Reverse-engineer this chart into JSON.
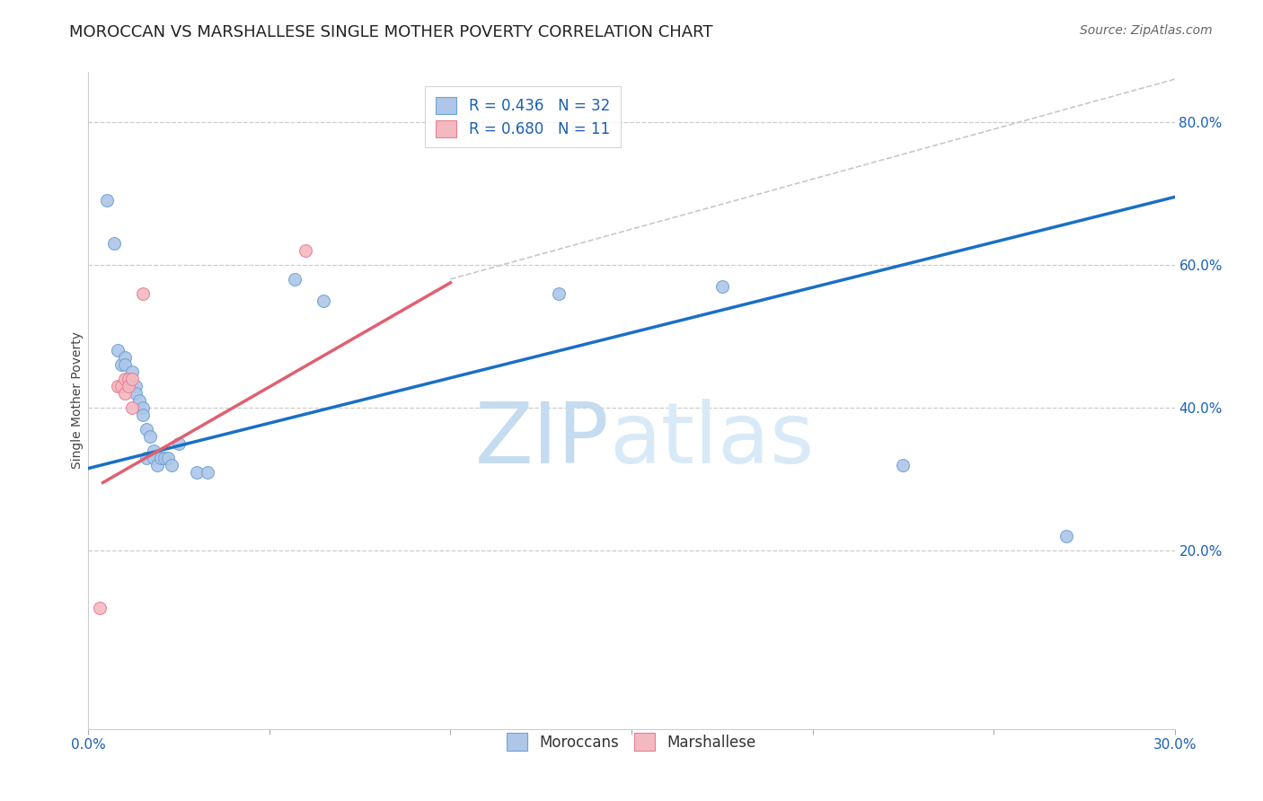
{
  "title": "MOROCCAN VS MARSHALLESE SINGLE MOTHER POVERTY CORRELATION CHART",
  "source": "Source: ZipAtlas.com",
  "ylabel": "Single Mother Poverty",
  "xlim": [
    0.0,
    0.3
  ],
  "ylim": [
    -0.05,
    0.87
  ],
  "xticks": [
    0.0,
    0.05,
    0.1,
    0.15,
    0.2,
    0.25,
    0.3
  ],
  "xticklabels": [
    "0.0%",
    "",
    "",
    "",
    "",
    "",
    "30.0%"
  ],
  "yticks_right": [
    0.2,
    0.4,
    0.6,
    0.8
  ],
  "yticklabels_right": [
    "20.0%",
    "40.0%",
    "60.0%",
    "80.0%"
  ],
  "moroccan_x": [
    0.005,
    0.007,
    0.008,
    0.009,
    0.01,
    0.01,
    0.011,
    0.012,
    0.013,
    0.013,
    0.014,
    0.015,
    0.015,
    0.016,
    0.016,
    0.017,
    0.018,
    0.018,
    0.019,
    0.02,
    0.021,
    0.022,
    0.023,
    0.025,
    0.03,
    0.033,
    0.057,
    0.065,
    0.13,
    0.175,
    0.225,
    0.27
  ],
  "moroccan_y": [
    0.69,
    0.63,
    0.48,
    0.46,
    0.47,
    0.46,
    0.44,
    0.45,
    0.43,
    0.42,
    0.41,
    0.4,
    0.39,
    0.33,
    0.37,
    0.36,
    0.34,
    0.33,
    0.32,
    0.33,
    0.33,
    0.33,
    0.32,
    0.35,
    0.31,
    0.31,
    0.58,
    0.55,
    0.56,
    0.57,
    0.32,
    0.22
  ],
  "marshallese_x": [
    0.003,
    0.008,
    0.009,
    0.01,
    0.01,
    0.011,
    0.011,
    0.012,
    0.012,
    0.06,
    0.015
  ],
  "marshallese_y": [
    0.12,
    0.43,
    0.43,
    0.44,
    0.42,
    0.44,
    0.43,
    0.44,
    0.4,
    0.62,
    0.56
  ],
  "blue_line_x": [
    0.0,
    0.3
  ],
  "blue_line_y": [
    0.315,
    0.695
  ],
  "pink_line_x": [
    0.004,
    0.1
  ],
  "pink_line_y": [
    0.295,
    0.575
  ],
  "ref_line_x": [
    0.1,
    0.3
  ],
  "ref_line_y": [
    0.58,
    0.86
  ],
  "moroccan_color": "#aec6e8",
  "moroccan_edge": "#6ba3d6",
  "marshallese_color": "#f4b8c1",
  "marshallese_edge": "#e87f92",
  "blue_line_color": "#1a6fc4",
  "pink_line_color": "#e06070",
  "ref_line_color": "#c8c8c8",
  "legend_r1": "R = 0.436   N = 32",
  "legend_r2": "R = 0.680   N = 11",
  "watermark_zip": "ZIP",
  "watermark_atlas": "atlas",
  "watermark_color": "#d5e8f5",
  "legend_label1": "Moroccans",
  "legend_label2": "Marshallese",
  "title_fontsize": 13,
  "source_fontsize": 10,
  "axis_label_fontsize": 10,
  "tick_fontsize": 11,
  "legend_fontsize": 12
}
